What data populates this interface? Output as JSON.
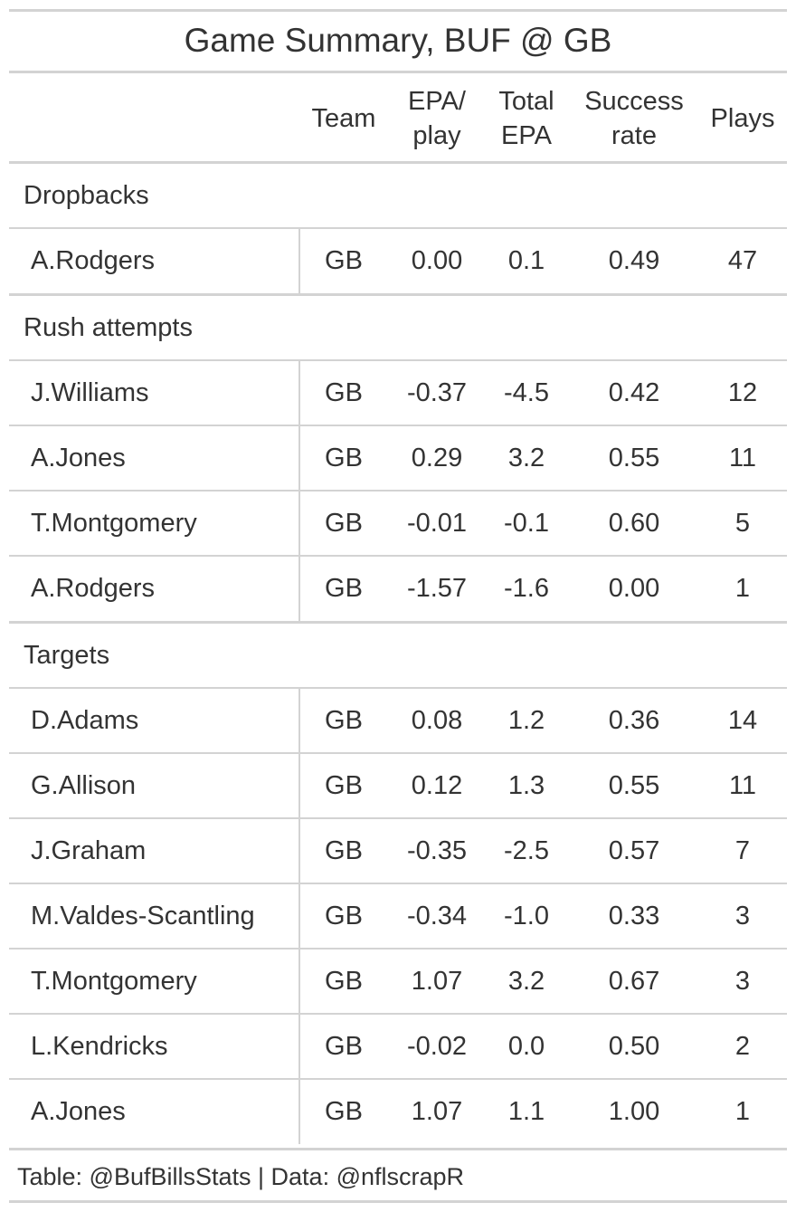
{
  "title": "Game Summary, BUF @ GB",
  "columns": {
    "team": "Team",
    "epa_play_1": "EPA/",
    "epa_play_2": "play",
    "total_epa_1": "Total",
    "total_epa_2": "EPA",
    "success_1": "Success",
    "success_2": "rate",
    "plays": "Plays"
  },
  "groups": [
    {
      "label": "Dropbacks",
      "rows": [
        {
          "player": "A.Rodgers",
          "team": "GB",
          "epa_play": "0.00",
          "total_epa": "0.1",
          "success_rate": "0.49",
          "plays": "47"
        }
      ]
    },
    {
      "label": "Rush attempts",
      "rows": [
        {
          "player": "J.Williams",
          "team": "GB",
          "epa_play": "-0.37",
          "total_epa": "-4.5",
          "success_rate": "0.42",
          "plays": "12"
        },
        {
          "player": "A.Jones",
          "team": "GB",
          "epa_play": "0.29",
          "total_epa": "3.2",
          "success_rate": "0.55",
          "plays": "11"
        },
        {
          "player": "T.Montgomery",
          "team": "GB",
          "epa_play": "-0.01",
          "total_epa": "-0.1",
          "success_rate": "0.60",
          "plays": "5"
        },
        {
          "player": "A.Rodgers",
          "team": "GB",
          "epa_play": "-1.57",
          "total_epa": "-1.6",
          "success_rate": "0.00",
          "plays": "1"
        }
      ]
    },
    {
      "label": "Targets",
      "rows": [
        {
          "player": "D.Adams",
          "team": "GB",
          "epa_play": "0.08",
          "total_epa": "1.2",
          "success_rate": "0.36",
          "plays": "14"
        },
        {
          "player": "G.Allison",
          "team": "GB",
          "epa_play": "0.12",
          "total_epa": "1.3",
          "success_rate": "0.55",
          "plays": "11"
        },
        {
          "player": "J.Graham",
          "team": "GB",
          "epa_play": "-0.35",
          "total_epa": "-2.5",
          "success_rate": "0.57",
          "plays": "7"
        },
        {
          "player": "M.Valdes-Scantling",
          "team": "GB",
          "epa_play": "-0.34",
          "total_epa": "-1.0",
          "success_rate": "0.33",
          "plays": "3"
        },
        {
          "player": "T.Montgomery",
          "team": "GB",
          "epa_play": "1.07",
          "total_epa": "3.2",
          "success_rate": "0.67",
          "plays": "3"
        },
        {
          "player": "L.Kendricks",
          "team": "GB",
          "epa_play": "-0.02",
          "total_epa": "0.0",
          "success_rate": "0.50",
          "plays": "2"
        },
        {
          "player": "A.Jones",
          "team": "GB",
          "epa_play": "1.07",
          "total_epa": "1.1",
          "success_rate": "1.00",
          "plays": "1"
        }
      ]
    }
  ],
  "source_note": "Table: @BufBillsStats | Data: @nflscrapR"
}
